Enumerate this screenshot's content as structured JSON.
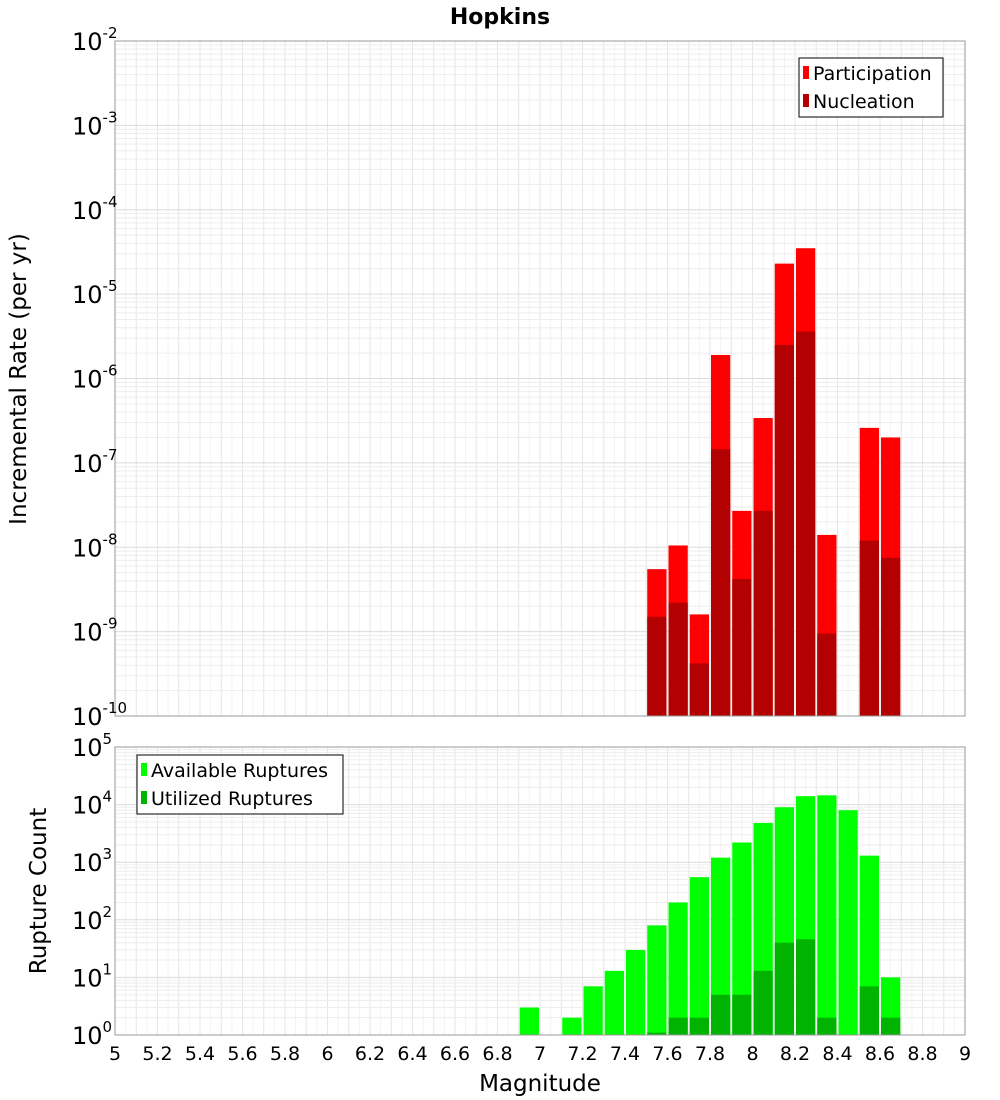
{
  "chart_data": [
    {
      "type": "bar",
      "title": "Hopkins",
      "xlabel": "",
      "ylabel": "Incremental Rate (per yr)",
      "yscale": "log",
      "ylim": [
        1e-10,
        0.01
      ],
      "xlim": [
        5,
        9
      ],
      "grid": true,
      "legend_position": "top-right",
      "series": [
        {
          "name": "Participation",
          "color": "#ff0000",
          "x": [
            7.55,
            7.65,
            7.75,
            7.85,
            7.95,
            8.05,
            8.15,
            8.25,
            8.35,
            8.55,
            8.65
          ],
          "values": [
            5.5e-09,
            1.05e-08,
            1.6e-09,
            1.9e-06,
            2.7e-08,
            3.4e-07,
            2.3e-05,
            3.5e-05,
            1.4e-08,
            2.6e-07,
            2e-07
          ]
        },
        {
          "name": "Nucleation",
          "color": "#b30000",
          "x": [
            7.55,
            7.65,
            7.75,
            7.85,
            7.95,
            8.05,
            8.15,
            8.25,
            8.35,
            8.55,
            8.65
          ],
          "values": [
            1.5e-09,
            2.2e-09,
            4.2e-10,
            1.45e-07,
            4.2e-09,
            2.7e-08,
            2.5e-06,
            3.6e-06,
            9.5e-10,
            1.2e-08,
            7.5e-09
          ]
        }
      ]
    },
    {
      "type": "bar",
      "title": "",
      "xlabel": "Magnitude",
      "ylabel": "Rupture Count",
      "yscale": "log",
      "ylim": [
        1,
        100000
      ],
      "xlim": [
        5,
        9
      ],
      "grid": true,
      "legend_position": "top-left",
      "xticks": [
        "5",
        "5.2",
        "5.4",
        "5.6",
        "5.8",
        "6",
        "6.2",
        "6.4",
        "6.6",
        "6.8",
        "7",
        "7.2",
        "7.4",
        "7.6",
        "7.8",
        "8",
        "8.2",
        "8.4",
        "8.6",
        "8.8",
        "9"
      ],
      "series": [
        {
          "name": "Available Ruptures",
          "color": "#00ff00",
          "x": [
            6.95,
            7.15,
            7.25,
            7.35,
            7.45,
            7.55,
            7.65,
            7.75,
            7.85,
            7.95,
            8.05,
            8.15,
            8.25,
            8.35,
            8.45,
            8.55,
            8.65
          ],
          "values": [
            3,
            2,
            7,
            13,
            30,
            80,
            200,
            550,
            1200,
            2200,
            4800,
            9000,
            14000,
            14500,
            8000,
            1300,
            10
          ]
        },
        {
          "name": "Utilized Ruptures",
          "color": "#00b300",
          "x": [
            7.55,
            7.65,
            7.75,
            7.85,
            7.95,
            8.05,
            8.15,
            8.25,
            8.35,
            8.55,
            8.65
          ],
          "values": [
            1.1,
            2,
            2,
            5,
            5,
            13,
            40,
            46,
            2,
            7,
            2
          ]
        }
      ]
    }
  ]
}
